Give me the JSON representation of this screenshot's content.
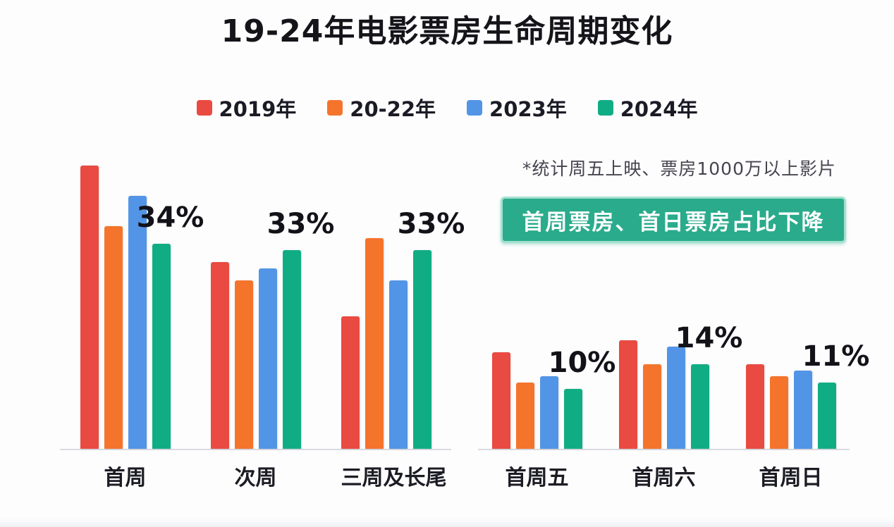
{
  "title": "19-24年电影票房生命周期变化",
  "annotation": "*统计周五上映、票房1000万以上影片",
  "badge": "首周票房、首日票房占比下降",
  "legend": [
    {
      "label": "2019年",
      "color": "#e94a41"
    },
    {
      "label": "20-22年",
      "color": "#f5742c"
    },
    {
      "label": "2023年",
      "color": "#5295e6"
    },
    {
      "label": "2024年",
      "color": "#10ad85"
    }
  ],
  "chart_data": {
    "type": "bar",
    "title": "19-24年电影票房生命周期变化",
    "unit": "%",
    "ylim": [
      0,
      50
    ],
    "grid": false,
    "legend_position": "top",
    "labeled_series": "2024年",
    "panels": [
      {
        "categories": [
          "首周",
          "次周",
          "三周及长尾"
        ],
        "series": [
          {
            "name": "2019年",
            "values": [
              47,
              31,
              22
            ]
          },
          {
            "name": "20-22年",
            "values": [
              37,
              28,
              35
            ]
          },
          {
            "name": "2023年",
            "values": [
              42,
              30,
              28
            ]
          },
          {
            "name": "2024年",
            "values": [
              34,
              33,
              33
            ]
          }
        ],
        "labels": [
          "34%",
          "33%",
          "33%"
        ]
      },
      {
        "categories": [
          "首周五",
          "首周六",
          "首周日"
        ],
        "series": [
          {
            "name": "2019年",
            "values": [
              16,
              18,
              14
            ]
          },
          {
            "name": "20-22年",
            "values": [
              11,
              14,
              12
            ]
          },
          {
            "name": "2023年",
            "values": [
              12,
              17,
              13
            ]
          },
          {
            "name": "2024年",
            "values": [
              10,
              14,
              11
            ]
          }
        ],
        "labels": [
          "10%",
          "14%",
          "11%"
        ]
      }
    ]
  }
}
